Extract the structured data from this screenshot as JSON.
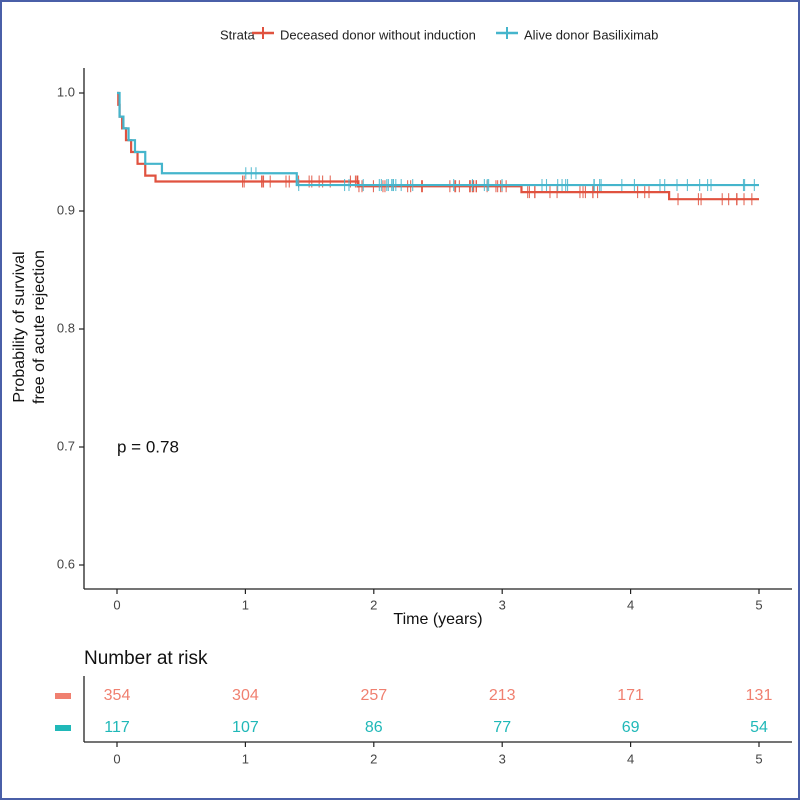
{
  "chart_data": {
    "type": "line",
    "subtype": "kaplan-meier",
    "title": "",
    "legend": {
      "title": "Strata",
      "position": "top"
    },
    "xlabel": "Time (years)",
    "ylabel_lines": [
      "Probability of survival",
      "free of acute rejection"
    ],
    "xlim": [
      0,
      5
    ],
    "ylim": [
      0.6,
      1.0
    ],
    "xticks": [
      "0",
      "1",
      "2",
      "3",
      "4",
      "5"
    ],
    "yticks": [
      "0.6",
      "0.7",
      "0.8",
      "0.9",
      "1.0"
    ],
    "grid": false,
    "annotation": "p = 0.78",
    "series": [
      {
        "name": "Deceased donor without induction",
        "color": "#e0523f",
        "steps": [
          [
            0,
            1.0
          ],
          [
            0.01,
            0.99
          ],
          [
            0.02,
            0.98
          ],
          [
            0.04,
            0.97
          ],
          [
            0.07,
            0.96
          ],
          [
            0.11,
            0.95
          ],
          [
            0.16,
            0.94
          ],
          [
            0.22,
            0.93
          ],
          [
            0.3,
            0.925
          ],
          [
            1.88,
            0.921
          ],
          [
            3.15,
            0.916
          ],
          [
            4.3,
            0.91
          ],
          [
            5,
            0.91
          ]
        ],
        "censor_start": 0.7,
        "censor_count": 70
      },
      {
        "name": "Alive donor Basiliximab",
        "color": "#45b5cc",
        "steps": [
          [
            0,
            1.0
          ],
          [
            0.02,
            0.98
          ],
          [
            0.05,
            0.97
          ],
          [
            0.09,
            0.96
          ],
          [
            0.14,
            0.95
          ],
          [
            0.22,
            0.94
          ],
          [
            0.35,
            0.932
          ],
          [
            1.4,
            0.922
          ],
          [
            5,
            0.922
          ]
        ],
        "censor_start": 1.0,
        "censor_count": 45
      }
    ],
    "risk_table": {
      "title": "Number at risk",
      "times": [
        "0",
        "1",
        "2",
        "3",
        "4",
        "5"
      ],
      "rows": [
        {
          "color": "#f08070",
          "values": [
            "354",
            "304",
            "257",
            "213",
            "171",
            "131"
          ]
        },
        {
          "color": "#20b8b8",
          "values": [
            "117",
            "107",
            "86",
            "77",
            "69",
            "54"
          ]
        }
      ]
    }
  }
}
